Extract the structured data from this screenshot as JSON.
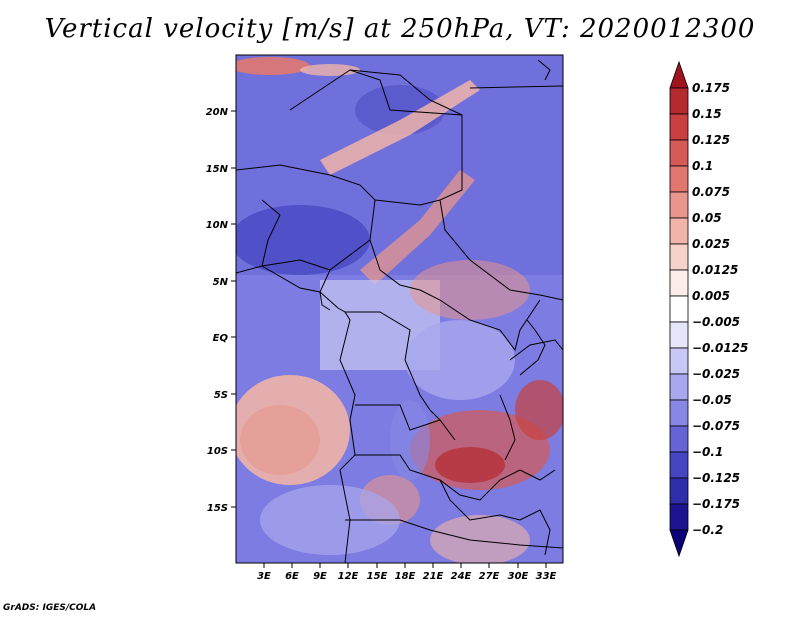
{
  "title": "Vertical velocity [m/s] at 250hPa, VT: 2020012300",
  "credit": "GrADS: IGES/COLA",
  "map": {
    "lat_labels": [
      "20N",
      "15N",
      "10N",
      "5N",
      "EQ",
      "5S",
      "10S",
      "15S"
    ],
    "lon_labels": [
      "3E",
      "6E",
      "9E",
      "12E",
      "15E",
      "18E",
      "21E",
      "24E",
      "27E",
      "30E",
      "33E"
    ]
  },
  "colorbar": {
    "levels": [
      "0.175",
      "0.15",
      "0.125",
      "0.1",
      "0.075",
      "0.05",
      "0.025",
      "0.0125",
      "0.005",
      "-0.005",
      "-0.0125",
      "-0.025",
      "-0.05",
      "-0.075",
      "-0.1",
      "-0.125",
      "-0.175",
      "-0.2"
    ],
    "colors": [
      "#a0141e",
      "#b42a2e",
      "#c8403f",
      "#d65a55",
      "#e07870",
      "#e8968c",
      "#f0b4aa",
      "#f6d2ca",
      "#fcecea",
      "#ffffff",
      "#e6e6fa",
      "#c8c8f4",
      "#a8a8ee",
      "#8888e4",
      "#6464d6",
      "#4646c2",
      "#2e2eaa",
      "#1c1490",
      "#0a0078"
    ]
  }
}
